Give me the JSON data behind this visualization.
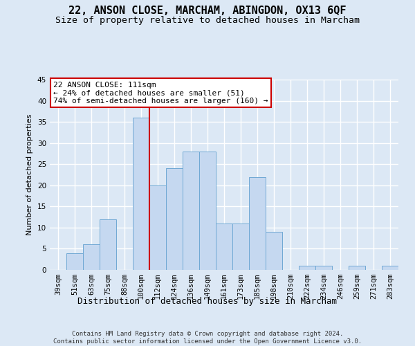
{
  "title": "22, ANSON CLOSE, MARCHAM, ABINGDON, OX13 6QF",
  "subtitle": "Size of property relative to detached houses in Marcham",
  "xlabel": "Distribution of detached houses by size in Marcham",
  "ylabel": "Number of detached properties",
  "categories": [
    "39sqm",
    "51sqm",
    "63sqm",
    "75sqm",
    "88sqm",
    "100sqm",
    "112sqm",
    "124sqm",
    "136sqm",
    "149sqm",
    "161sqm",
    "173sqm",
    "185sqm",
    "198sqm",
    "210sqm",
    "222sqm",
    "234sqm",
    "246sqm",
    "259sqm",
    "271sqm",
    "283sqm"
  ],
  "values": [
    0,
    4,
    6,
    12,
    0,
    36,
    20,
    24,
    28,
    28,
    11,
    11,
    22,
    9,
    0,
    1,
    1,
    0,
    1,
    0,
    1
  ],
  "bar_color": "#c5d8f0",
  "bar_edge_color": "#6fa8d4",
  "vline_x": 5.5,
  "vline_color": "#cc0000",
  "annotation_text": "22 ANSON CLOSE: 111sqm\n← 24% of detached houses are smaller (51)\n74% of semi-detached houses are larger (160) →",
  "annotation_box_color": "#ffffff",
  "annotation_box_edge": "#cc0000",
  "ylim": [
    0,
    45
  ],
  "yticks": [
    0,
    5,
    10,
    15,
    20,
    25,
    30,
    35,
    40,
    45
  ],
  "footer": "Contains HM Land Registry data © Crown copyright and database right 2024.\nContains public sector information licensed under the Open Government Licence v3.0.",
  "bg_color": "#dce8f5",
  "grid_color": "#ffffff",
  "title_fontsize": 11,
  "subtitle_fontsize": 9.5,
  "xlabel_fontsize": 9,
  "ylabel_fontsize": 8,
  "tick_fontsize": 7.5,
  "annotation_fontsize": 8,
  "footer_fontsize": 6.5
}
